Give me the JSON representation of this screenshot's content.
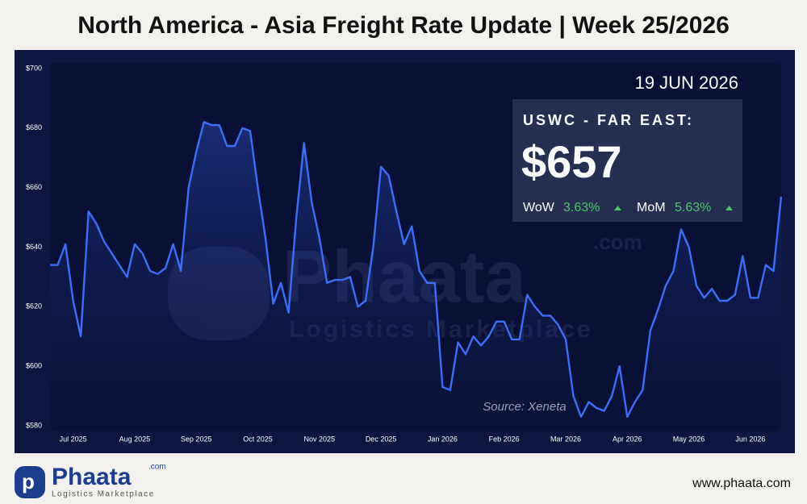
{
  "chart_data": {
    "type": "line",
    "title": "North America - Asia Freight Rate Update | Week 25/2026",
    "date": "19 JUN 2026",
    "card": {
      "route": "USWC - FAR EAST:",
      "price": "$657",
      "changes": [
        {
          "name": "WoW",
          "change": "3.63%"
        },
        {
          "name": "MoM",
          "change": "5.63%"
        }
      ]
    },
    "source": "Source: Xeneta",
    "watermark": {
      "name": "Phaata",
      "domain": ".com",
      "tagline": "Logistics Marketplace"
    },
    "brand": {
      "name": "Phaata",
      "domain": ".com",
      "tagline": "Logistics Marketplace",
      "url": "www.phaata.com"
    },
    "categories": [
      null,
      null,
      null,
      "Jul 2025",
      null,
      null,
      null,
      null,
      null,
      null,
      null,
      "Aug 2025",
      null,
      null,
      null,
      null,
      null,
      null,
      null,
      "Sep 2025",
      null,
      null,
      null,
      null,
      null,
      null,
      null,
      "Oct 2025",
      null,
      null,
      null,
      null,
      null,
      null,
      null,
      "Nov 2025",
      null,
      null,
      null,
      null,
      null,
      null,
      null,
      "Dec 2025",
      null,
      null,
      null,
      null,
      null,
      null,
      null,
      "Jan 2026",
      null,
      null,
      null,
      null,
      null,
      null,
      null,
      "Feb 2026",
      null,
      null,
      null,
      null,
      null,
      null,
      null,
      "Mar 2026",
      null,
      null,
      null,
      null,
      null,
      null,
      null,
      "Apr 2026",
      null,
      null,
      null,
      null,
      null,
      null,
      null,
      "May 2026",
      null,
      null,
      null,
      null,
      null,
      null,
      null,
      "Jun 2026",
      null,
      null,
      null,
      null
    ],
    "series": [
      {
        "name": "USWC - Far East",
        "color": "#3d6ef7",
        "values": [
          634,
          634,
          641,
          622,
          610,
          652,
          648,
          642,
          638,
          634,
          630,
          641,
          638,
          632,
          631,
          633,
          641,
          632,
          660,
          672,
          682,
          681,
          681,
          674,
          674,
          680,
          679,
          660,
          643,
          621,
          628,
          618,
          650,
          675,
          655,
          643,
          628,
          629,
          629,
          630,
          620,
          622,
          640,
          667,
          664,
          652,
          641,
          647,
          632,
          628,
          628,
          593,
          592,
          608,
          604,
          610,
          607,
          610,
          615,
          615,
          609,
          609,
          624,
          620,
          617,
          617,
          614,
          609,
          590,
          583,
          588,
          586,
          585,
          590,
          600,
          583,
          588,
          592,
          612,
          619,
          627,
          632,
          646,
          640,
          627,
          623,
          626,
          622,
          622,
          624,
          637,
          623,
          623,
          634,
          632,
          657
        ]
      }
    ],
    "ylim": [
      580,
      700
    ],
    "yticks": [
      {
        "value": 580,
        "label": "$580"
      },
      {
        "value": 600,
        "label": "$600"
      },
      {
        "value": 620,
        "label": "$620"
      },
      {
        "value": 640,
        "label": "$640"
      },
      {
        "value": 660,
        "label": "$660"
      },
      {
        "value": 680,
        "label": "$680"
      },
      {
        "value": 700,
        "label": "$700"
      }
    ],
    "grid": false
  }
}
